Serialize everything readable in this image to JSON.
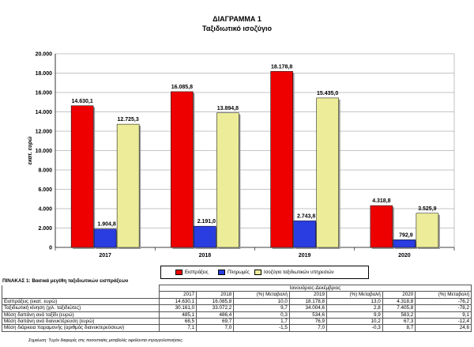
{
  "title": "ΔΙΑΓΡΑΜΜΑ 1",
  "subtitle": "Ταξιδιωτικό ισοζύγιο",
  "chart_data": {
    "type": "bar",
    "categories": [
      "2017",
      "2018",
      "2019",
      "2020"
    ],
    "series": [
      {
        "name": "Εισπράξεις",
        "color": "#ee0000",
        "values": [
          14630.1,
          16085.8,
          18178.8,
          4318.8
        ],
        "labels": [
          "14.630,1",
          "16.085,8",
          "18.178,8",
          "4.318,8"
        ]
      },
      {
        "name": "Πληρωμές",
        "color": "#2a3de0",
        "values": [
          1904.8,
          2191.0,
          2743.8,
          792.9
        ],
        "labels": [
          "1.904,8",
          "2.191,0",
          "2.743,8",
          "792,9"
        ]
      },
      {
        "name": "Ισοζύγιο ταξιδιωτικών υπηρεσιών",
        "color": "#eded99",
        "values": [
          12725.3,
          13894.8,
          15435.0,
          3525.9
        ],
        "labels": [
          "12.725,3",
          "13.894,8",
          "15.435,0",
          "3.525,9"
        ]
      }
    ],
    "ylabel": "εκατ. ευρώ",
    "ylim": [
      0,
      20000
    ],
    "yticks": [
      0,
      2000,
      4000,
      6000,
      8000,
      10000,
      12000,
      14000,
      16000,
      18000,
      20000
    ],
    "ytick_labels": [
      "0",
      "2.000",
      "4.000",
      "6.000",
      "8.000",
      "10.000",
      "12.000",
      "14.000",
      "16.000",
      "18.000",
      "20.000"
    ],
    "grid": true,
    "legend": "bottom"
  },
  "table": {
    "title": "ΠΙΝΑΚΑΣ 1: Βασικά μεγέθη ταξιδιωτικών εισπράξεων",
    "period": "Ιανουάριος-Δεκέμβριος",
    "headers": [
      "2017",
      "2018",
      "(%) Μεταβολή",
      "2019",
      "(%) Μεταβολή",
      "2020",
      "(%) Μεταβολή"
    ],
    "rows": [
      {
        "label": "Εισπράξεις (εκατ. ευρώ)",
        "cells": [
          "14.630,1",
          "16.085,8",
          "10,0",
          "18.178,8",
          "13,0",
          "4.318,8",
          "-76,2"
        ]
      },
      {
        "label": "Ταξιδιωτική κίνηση (χιλ. ταξιδιώτες)",
        "cells": [
          "30.161,0",
          "33.072,2",
          "9,7",
          "34.004,6",
          "2,8",
          "7.405,8",
          "-78,2"
        ]
      },
      {
        "label": "Μέση δαπάνη ανά ταξίδι (ευρώ)",
        "cells": [
          "485,1",
          "486,4",
          "0,3",
          "534,6",
          "9,9",
          "583,2",
          "9,1"
        ]
      },
      {
        "label": "Μέση δαπάνη ανά διανυκτέρευση (ευρώ)",
        "cells": [
          "68,5",
          "69,7",
          "1,7",
          "76,9",
          "10,2",
          "67,3",
          "-12,4"
        ]
      },
      {
        "label": "Μέση διάρκεια παραμονής (αριθμός διανυκτερεύσεων)",
        "cells": [
          "7,1",
          "7,0",
          "-1,5",
          "7,0",
          "-0,3",
          "8,7",
          "24,6"
        ]
      }
    ],
    "note": "Σημείωση: Τυχόν διαφορές στις ποσοστιαίες μεταβολές οφείλονται στρογγυλοποιήσεις."
  }
}
